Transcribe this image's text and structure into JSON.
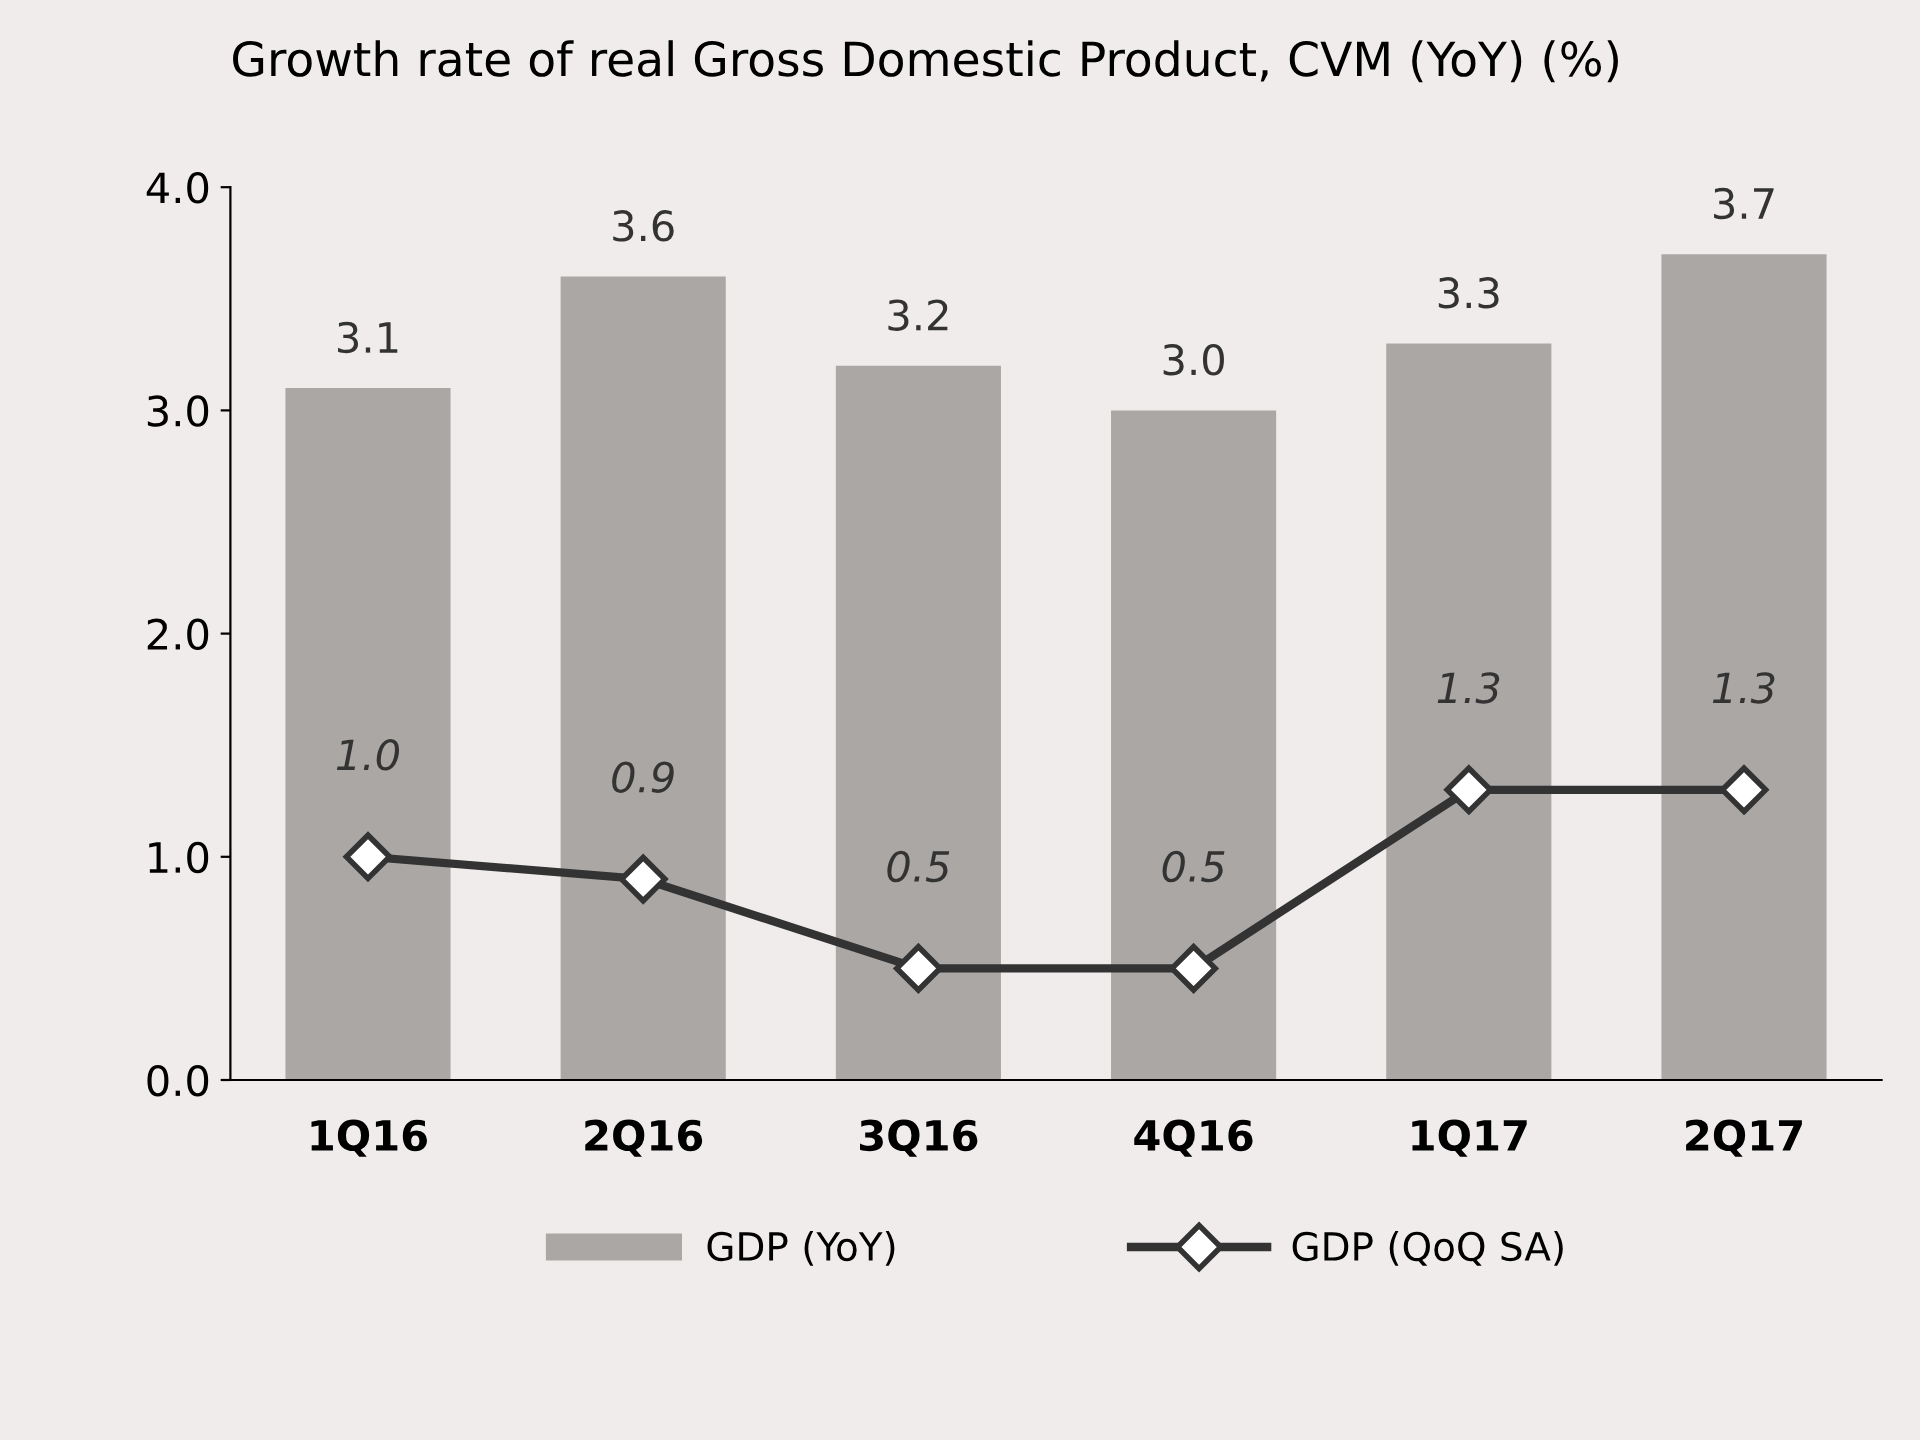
{
  "chart_data": {
    "type": "bar",
    "title": "Growth rate of real Gross Domestic Product, CVM (YoY) (%)",
    "categories": [
      "1Q16",
      "2Q16",
      "3Q16",
      "4Q16",
      "1Q17",
      "2Q17"
    ],
    "series": [
      {
        "name": "GDP (YoY)",
        "color": "#aaa7a5",
        "values": [
          3.1,
          3.6,
          3.2,
          3.0,
          3.3,
          3.7
        ],
        "value_labels": [
          "3.1",
          "3.6",
          "3.2",
          "3.0",
          "3.3",
          "3.7"
        ]
      },
      {
        "name": "GDP (QoQ SA)",
        "type": "line",
        "color": "#333333",
        "marker": "diamond",
        "line_style": "solid",
        "values": [
          1.0,
          0.9,
          0.5,
          0.5,
          1.3,
          1.3
        ],
        "value_labels": [
          "1.0",
          "0.9",
          "0.5",
          "0.5",
          "1.3",
          "1.3"
        ]
      }
    ],
    "ylim": [
      0,
      4.0
    ],
    "yticks": [
      {
        "value": 0,
        "label": "0.0"
      },
      {
        "value": 1,
        "label": "1.0"
      },
      {
        "value": 2,
        "label": "2.0"
      },
      {
        "value": 3,
        "label": "3.0"
      },
      {
        "value": 4,
        "label": "4.0"
      }
    ],
    "grid": false,
    "legend": "bottom"
  }
}
